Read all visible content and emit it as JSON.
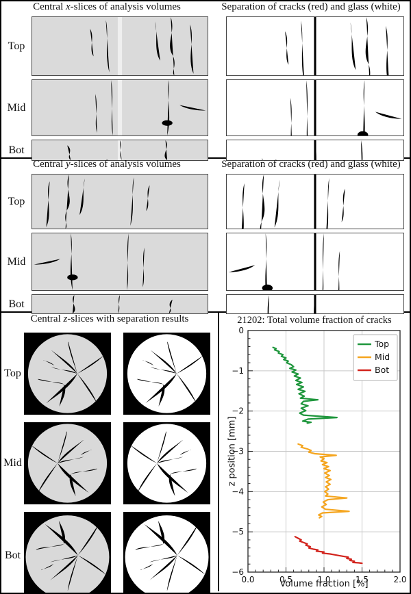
{
  "titles": {
    "x_prefix": "Central ",
    "x_letter": "x",
    "x_suffix": "-slices of analysis volumes",
    "y_prefix": "Central ",
    "y_letter": "y",
    "y_suffix": "-slices of analysis volumes",
    "z_prefix": "Central ",
    "z_letter": "z",
    "z_suffix": "-slices with separation results",
    "separation": "Separation of cracks (red) and glass (white)"
  },
  "row_labels": [
    "Top",
    "Mid",
    "Bot"
  ],
  "colors": {
    "crack_red": "#c0392b",
    "slice_gray": "#dadada",
    "grid_gray": "#c8c8c8",
    "series_top": "#1e963c",
    "series_mid": "#f5a51e",
    "series_bot": "#d2231c"
  },
  "chart_data": {
    "type": "line",
    "title": "21202: Total volume fraction of cracks",
    "xlabel": "Volume fraction [%]",
    "ylabel": "z position [mm]",
    "xlim": [
      0,
      2
    ],
    "ylim": [
      -6,
      0
    ],
    "grid": true,
    "legend_position": "upper right",
    "xticks": [
      {
        "v": 0,
        "label": "0.0"
      },
      {
        "v": 0.5,
        "label": "0.5"
      },
      {
        "v": 1,
        "label": "1.0"
      },
      {
        "v": 1.5,
        "label": "1.5"
      },
      {
        "v": 2,
        "label": "2.0"
      }
    ],
    "yticks": [
      {
        "v": 0,
        "label": "0"
      },
      {
        "v": -1,
        "label": "−1"
      },
      {
        "v": -2,
        "label": "−2"
      },
      {
        "v": -3,
        "label": "−3"
      },
      {
        "v": -4,
        "label": "−4"
      },
      {
        "v": -5,
        "label": "−5"
      },
      {
        "v": -6,
        "label": "−6"
      }
    ],
    "minor_step_x": 0.1,
    "minor_step_y": 0.2,
    "series": [
      {
        "name": "Top",
        "color": "#1e963c",
        "points": [
          [
            0.33,
            -0.42
          ],
          [
            0.37,
            -0.45
          ],
          [
            0.35,
            -0.48
          ],
          [
            0.41,
            -0.52
          ],
          [
            0.4,
            -0.56
          ],
          [
            0.46,
            -0.6
          ],
          [
            0.44,
            -0.64
          ],
          [
            0.5,
            -0.68
          ],
          [
            0.47,
            -0.72
          ],
          [
            0.53,
            -0.76
          ],
          [
            0.51,
            -0.8
          ],
          [
            0.57,
            -0.85
          ],
          [
            0.6,
            -0.9
          ],
          [
            0.55,
            -0.94
          ],
          [
            0.63,
            -0.98
          ],
          [
            0.58,
            -1.03
          ],
          [
            0.66,
            -1.08
          ],
          [
            0.61,
            -1.13
          ],
          [
            0.69,
            -1.18
          ],
          [
            0.63,
            -1.24
          ],
          [
            0.71,
            -1.29
          ],
          [
            0.64,
            -1.34
          ],
          [
            0.73,
            -1.4
          ],
          [
            0.66,
            -1.46
          ],
          [
            0.75,
            -1.51
          ],
          [
            0.67,
            -1.57
          ],
          [
            0.74,
            -1.63
          ],
          [
            0.69,
            -1.68
          ],
          [
            0.92,
            -1.72
          ],
          [
            0.73,
            -1.76
          ],
          [
            0.7,
            -1.82
          ],
          [
            0.79,
            -1.87
          ],
          [
            0.7,
            -1.93
          ],
          [
            0.76,
            -1.99
          ],
          [
            0.68,
            -2.05
          ],
          [
            0.73,
            -2.1
          ],
          [
            1.17,
            -2.16
          ],
          [
            0.79,
            -2.2
          ],
          [
            0.72,
            -2.25
          ],
          [
            0.83,
            -2.28
          ],
          [
            0.78,
            -2.3
          ]
        ]
      },
      {
        "name": "Mid",
        "color": "#f5a51e",
        "points": [
          [
            0.66,
            -2.82
          ],
          [
            0.72,
            -2.86
          ],
          [
            0.7,
            -2.9
          ],
          [
            0.78,
            -2.94
          ],
          [
            0.83,
            -2.98
          ],
          [
            0.8,
            -3.02
          ],
          [
            0.88,
            -3.06
          ],
          [
            1.16,
            -3.1
          ],
          [
            0.95,
            -3.14
          ],
          [
            1.0,
            -3.18
          ],
          [
            0.96,
            -3.24
          ],
          [
            1.04,
            -3.28
          ],
          [
            0.98,
            -3.33
          ],
          [
            1.06,
            -3.38
          ],
          [
            1.0,
            -3.43
          ],
          [
            1.08,
            -3.48
          ],
          [
            1.01,
            -3.54
          ],
          [
            1.07,
            -3.6
          ],
          [
            1.02,
            -3.65
          ],
          [
            1.09,
            -3.7
          ],
          [
            1.03,
            -3.76
          ],
          [
            1.08,
            -3.82
          ],
          [
            1.02,
            -3.88
          ],
          [
            1.06,
            -3.94
          ],
          [
            1.01,
            -4.0
          ],
          [
            1.05,
            -4.06
          ],
          [
            1.02,
            -4.11
          ],
          [
            1.3,
            -4.16
          ],
          [
            1.05,
            -4.2
          ],
          [
            0.99,
            -4.26
          ],
          [
            1.03,
            -4.32
          ],
          [
            0.97,
            -4.38
          ],
          [
            1.02,
            -4.44
          ],
          [
            1.33,
            -4.49
          ],
          [
            0.98,
            -4.53
          ],
          [
            0.93,
            -4.58
          ],
          [
            0.97,
            -4.62
          ],
          [
            0.94,
            -4.65
          ]
        ]
      },
      {
        "name": "Bot",
        "color": "#d2231c",
        "points": [
          [
            0.62,
            -5.12
          ],
          [
            0.66,
            -5.16
          ],
          [
            0.7,
            -5.2
          ],
          [
            0.68,
            -5.23
          ],
          [
            0.74,
            -5.27
          ],
          [
            0.78,
            -5.3
          ],
          [
            0.76,
            -5.33
          ],
          [
            0.82,
            -5.37
          ],
          [
            0.8,
            -5.4
          ],
          [
            0.86,
            -5.43
          ],
          [
            0.92,
            -5.45
          ],
          [
            0.9,
            -5.48
          ],
          [
            1.0,
            -5.5
          ],
          [
            0.98,
            -5.53
          ],
          [
            1.08,
            -5.55
          ],
          [
            1.14,
            -5.57
          ],
          [
            1.2,
            -5.59
          ],
          [
            1.26,
            -5.61
          ],
          [
            1.32,
            -5.63
          ],
          [
            1.3,
            -5.66
          ],
          [
            1.36,
            -5.68
          ],
          [
            1.34,
            -5.71
          ],
          [
            1.4,
            -5.73
          ],
          [
            1.38,
            -5.76
          ],
          [
            1.46,
            -5.77
          ],
          [
            1.5,
            -5.78
          ]
        ]
      }
    ]
  }
}
